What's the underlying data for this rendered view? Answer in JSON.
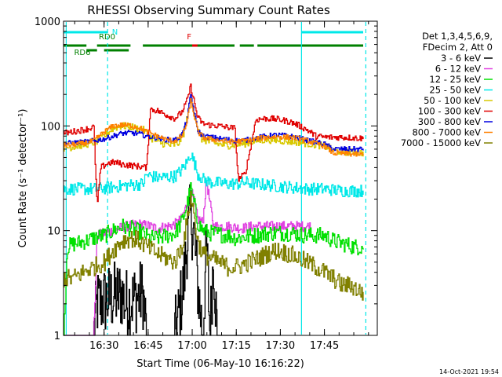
{
  "chart_data": {
    "type": "line",
    "title": "RHESSI Observing Summary Count Rates",
    "xlabel": "Start Time (06-May-10 16:16:22)",
    "ylabel": "Count Rate (s⁻¹ detector⁻¹)",
    "yscale": "log",
    "ylim": [
      1,
      1000
    ],
    "xlim": [
      16.27,
      18.05
    ],
    "x_ticks": [
      {
        "value": 16.5,
        "label": "16:30"
      },
      {
        "value": 16.75,
        "label": "16:45"
      },
      {
        "value": 17.0,
        "label": "17:00"
      },
      {
        "value": 17.25,
        "label": "17:15"
      },
      {
        "value": 17.5,
        "label": "17:30"
      },
      {
        "value": 17.75,
        "label": "17:45"
      }
    ],
    "y_ticks": [
      {
        "value": 1,
        "label": "1"
      },
      {
        "value": 10,
        "label": "10"
      },
      {
        "value": 100,
        "label": "100"
      },
      {
        "value": 1000,
        "label": "1000"
      }
    ],
    "legend_header": [
      "Det 1,3,4,5,6,9,",
      "FDecim 2, Att 0"
    ],
    "legend_position": "right",
    "series": [
      {
        "name": "3 - 6 keV",
        "color": "#000000",
        "x": [
          16.27,
          16.44,
          16.46,
          16.6,
          16.62,
          16.72,
          16.74,
          16.87,
          16.9,
          16.92,
          16.95,
          16.97,
          16.99,
          17.01,
          17.03,
          17.06,
          17.08,
          17.1,
          17.12,
          17.14,
          17.16,
          17.5
        ],
        "y": [
          1,
          1,
          2,
          2.5,
          2,
          2.5,
          1,
          1,
          1,
          1.5,
          3,
          8,
          14,
          9,
          3,
          1,
          8,
          1,
          6,
          1,
          1,
          1
        ]
      },
      {
        "name": "6 - 12 keV",
        "color": "#e040e0",
        "x": [
          16.27,
          16.44,
          16.46,
          16.55,
          16.62,
          16.7,
          16.76,
          16.8,
          16.86,
          16.9,
          16.94,
          16.97,
          16.99,
          17.01,
          17.03,
          17.06,
          17.08,
          17.12,
          17.2,
          17.28,
          17.35,
          17.5,
          17.62,
          17.67
        ],
        "y": [
          1,
          1,
          9,
          10,
          11,
          11.5,
          11,
          10.5,
          11,
          11.5,
          13,
          18,
          25,
          19,
          13,
          12,
          30,
          11,
          11,
          10.5,
          11,
          11,
          11,
          11
        ]
      },
      {
        "name": "12 - 25 keV",
        "color": "#00e000",
        "x": [
          16.27,
          16.29,
          16.33,
          16.4,
          16.44,
          16.5,
          16.55,
          16.6,
          16.65,
          16.72,
          16.75,
          16.8,
          16.86,
          16.9,
          16.94,
          16.97,
          16.99,
          17.01,
          17.03,
          17.06,
          17.1,
          17.2,
          17.25,
          17.35,
          17.45,
          17.55,
          17.65,
          17.75,
          17.8,
          17.92,
          17.97
        ],
        "y": [
          1,
          7,
          7.5,
          8,
          8.5,
          9,
          10,
          11,
          10.5,
          9.5,
          8.5,
          8.5,
          9,
          9.5,
          12,
          18,
          25,
          18,
          12,
          10,
          9.5,
          9,
          8.5,
          9,
          9.5,
          9.5,
          9,
          9,
          8,
          7,
          7
        ]
      },
      {
        "name": "25 - 50 keV",
        "color": "#00e8e8",
        "x": [
          16.27,
          16.44,
          16.46,
          16.55,
          16.62,
          16.72,
          16.74,
          16.8,
          16.9,
          16.94,
          16.97,
          16.99,
          17.01,
          17.03,
          17.06,
          17.1,
          17.2,
          17.23,
          17.26,
          17.3,
          17.35,
          17.45,
          17.55,
          17.65,
          17.75,
          17.85,
          17.97
        ],
        "y": [
          25,
          25,
          25,
          26,
          27,
          28,
          34,
          32,
          33,
          38,
          45,
          55,
          45,
          35,
          31,
          29,
          28,
          28,
          28,
          29,
          28,
          27,
          26,
          25,
          25,
          24,
          24
        ]
      },
      {
        "name": "50 - 100 keV",
        "color": "#d8c800",
        "x": [
          16.27,
          16.32,
          16.38,
          16.45,
          16.5,
          16.55,
          16.6,
          16.65,
          16.72,
          16.76,
          16.8,
          16.88,
          16.92,
          16.95,
          16.97,
          16.99,
          17.01,
          17.03,
          17.05,
          17.1,
          17.15,
          17.2,
          17.24,
          17.3,
          17.36,
          17.42,
          17.48,
          17.55,
          17.6,
          17.65,
          17.7,
          17.75,
          17.8,
          17.85,
          17.9,
          17.97
        ],
        "y": [
          62,
          63,
          66,
          70,
          80,
          95,
          100,
          98,
          92,
          78,
          70,
          65,
          68,
          85,
          120,
          185,
          140,
          95,
          75,
          70,
          67,
          65,
          66,
          68,
          72,
          74,
          73,
          71,
          70,
          68,
          66,
          64,
          58,
          57,
          56,
          55
        ]
      },
      {
        "name": "100 - 300 keV",
        "color": "#e00000",
        "x": [
          16.27,
          16.32,
          16.38,
          16.42,
          16.44,
          16.46,
          16.48,
          16.52,
          16.56,
          16.6,
          16.65,
          16.7,
          16.74,
          16.76,
          16.8,
          16.85,
          16.9,
          16.94,
          16.97,
          16.99,
          17.01,
          17.03,
          17.06,
          17.1,
          17.15,
          17.2,
          17.24,
          17.26,
          17.3,
          17.36,
          17.42,
          17.48,
          17.55,
          17.6,
          17.65,
          17.7,
          17.75,
          17.85,
          17.97
        ],
        "y": [
          85,
          88,
          92,
          95,
          98,
          17,
          40,
          44,
          45,
          43,
          42,
          41,
          40,
          145,
          140,
          128,
          118,
          135,
          175,
          240,
          170,
          120,
          105,
          102,
          100,
          97,
          95,
          31,
          35,
          115,
          118,
          116,
          110,
          102,
          92,
          80,
          78,
          78,
          76
        ]
      },
      {
        "name": "300 - 800 keV",
        "color": "#0000e0",
        "x": [
          16.27,
          16.32,
          16.38,
          16.44,
          16.5,
          16.55,
          16.6,
          16.65,
          16.7,
          16.74,
          16.8,
          16.85,
          16.9,
          16.94,
          16.97,
          16.99,
          17.01,
          17.03,
          17.06,
          17.1,
          17.15,
          17.2,
          17.26,
          17.32,
          17.38,
          17.42,
          17.48,
          17.55,
          17.6,
          17.65,
          17.7,
          17.75,
          17.8,
          17.9,
          17.97
        ],
        "y": [
          68,
          69,
          70,
          72,
          75,
          80,
          85,
          86,
          84,
          80,
          77,
          74,
          73,
          82,
          115,
          200,
          135,
          90,
          80,
          78,
          76,
          74,
          72,
          74,
          78,
          80,
          82,
          80,
          77,
          73,
          70,
          67,
          60,
          60,
          60
        ]
      },
      {
        "name": "800 - 7000 keV",
        "color": "#ff8000",
        "x": [
          16.27,
          16.32,
          16.38,
          16.44,
          16.5,
          16.55,
          16.6,
          16.65,
          16.7,
          16.74,
          16.8,
          16.85,
          16.9,
          16.94,
          16.97,
          16.99,
          17.01,
          17.03,
          17.06,
          17.1,
          17.15,
          17.2,
          17.26,
          17.32,
          17.38,
          17.42,
          17.48,
          17.55,
          17.6,
          17.65,
          17.7,
          17.75,
          17.8,
          17.9,
          17.97
        ],
        "y": [
          65,
          66,
          68,
          72,
          88,
          100,
          102,
          101,
          96,
          88,
          80,
          74,
          72,
          80,
          108,
          175,
          125,
          88,
          78,
          75,
          73,
          71,
          71,
          73,
          76,
          78,
          79,
          78,
          76,
          72,
          68,
          64,
          55,
          54,
          53
        ]
      },
      {
        "name": "7000 - 15000 keV",
        "color": "#808000",
        "x": [
          16.27,
          16.32,
          16.38,
          16.44,
          16.5,
          16.55,
          16.6,
          16.65,
          16.7,
          16.74,
          16.8,
          16.85,
          16.9,
          16.94,
          16.97,
          16.99,
          17.01,
          17.03,
          17.06,
          17.1,
          17.15,
          17.2,
          17.26,
          17.32,
          17.38,
          17.42,
          17.48,
          17.55,
          17.6,
          17.65,
          17.7,
          17.75,
          17.8,
          17.85,
          17.9,
          17.97
        ],
        "y": [
          3.5,
          3.5,
          4,
          4.5,
          5,
          6.5,
          8,
          8.5,
          8,
          7,
          6,
          5.5,
          5,
          7,
          12,
          22,
          14,
          8,
          6,
          5.5,
          5,
          4.5,
          4.5,
          5,
          5.5,
          6,
          6.5,
          6,
          5.5,
          5,
          4.5,
          4,
          3.5,
          3,
          3,
          2.5
        ]
      }
    ],
    "segments": [
      {
        "label": "N",
        "color": "#00e8e8",
        "level": "top",
        "label_x": 16.545,
        "spans": [
          [
            16.27,
            16.52
          ],
          [
            17.62,
            17.97
          ]
        ]
      },
      {
        "label": "RD0",
        "color": "#008000",
        "level": "middle",
        "label_x": 16.47,
        "spans": [
          [
            16.27,
            16.4
          ],
          [
            16.46,
            16.65
          ],
          [
            16.72,
            17.24
          ],
          [
            17.27,
            17.35
          ],
          [
            17.37,
            17.97
          ]
        ]
      },
      {
        "label": "RD6",
        "color": "#008000",
        "level": "lower",
        "label_x": 16.33,
        "spans": [
          [
            16.4,
            16.46
          ],
          [
            16.5,
            16.64
          ]
        ]
      },
      {
        "label": "F",
        "color": "#e00000",
        "level": "middle",
        "label_x": 16.97,
        "spans": [
          [
            17.0,
            17.03
          ]
        ]
      }
    ],
    "vlines": [
      {
        "x": 16.285,
        "style": "solid",
        "color": "#00e8e8"
      },
      {
        "x": 16.52,
        "style": "dashed",
        "color": "#00e8e8"
      },
      {
        "x": 17.62,
        "style": "solid",
        "color": "#00e8e8"
      },
      {
        "x": 17.985,
        "style": "dashed",
        "color": "#00e8e8"
      }
    ]
  },
  "footer": {
    "timestamp": "14-Oct-2021 19:54"
  }
}
